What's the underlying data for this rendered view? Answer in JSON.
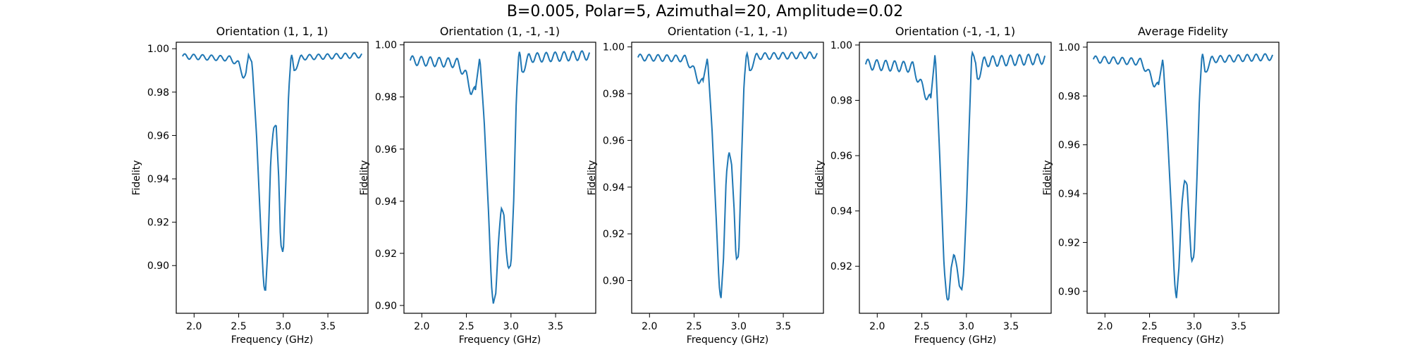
{
  "suptitle": "B=0.005, Polar=5, Azimuthal=20, Amplitude=0.02",
  "colors": {
    "line": "#1f77b4"
  },
  "chart_data": [
    {
      "type": "line",
      "title": "Orientation (1, 1, 1)",
      "xlabel": "Frequency (GHz)",
      "ylabel": "Fidelity",
      "xlim": [
        1.8,
        3.95
      ],
      "ylim": [
        0.878,
        1.003
      ],
      "xticks": [
        "2.0",
        "2.5",
        "3.0",
        "3.5"
      ],
      "yticks": [
        "0.90",
        "0.92",
        "0.94",
        "0.96",
        "0.98",
        "1.00"
      ],
      "x": [
        1.87,
        2.4,
        2.5,
        2.55,
        2.58,
        2.61,
        2.65,
        2.7,
        2.75,
        2.78,
        2.8,
        2.83,
        2.86,
        2.89,
        2.92,
        2.95,
        2.97,
        3.0,
        3.03,
        3.06,
        3.09,
        3.12,
        3.2,
        3.88
      ],
      "y": [
        0.9965,
        0.9955,
        0.993,
        0.9875,
        0.9875,
        0.997,
        0.994,
        0.96,
        0.915,
        0.891,
        0.887,
        0.91,
        0.95,
        0.963,
        0.965,
        0.94,
        0.91,
        0.905,
        0.94,
        0.98,
        0.998,
        0.99,
        0.996,
        0.997
      ],
      "ripple": 0.0012
    },
    {
      "type": "line",
      "title": "Orientation (1, -1, -1)",
      "xlabel": "Frequency (GHz)",
      "ylabel": "Fidelity",
      "xlim": [
        1.8,
        3.95
      ],
      "ylim": [
        0.897,
        1.001
      ],
      "xticks": [
        "2.0",
        "2.5",
        "3.0",
        "3.5"
      ],
      "yticks": [
        "0.90",
        "0.92",
        "0.94",
        "0.96",
        "0.98",
        "1.00"
      ],
      "x": [
        1.87,
        2.4,
        2.5,
        2.55,
        2.6,
        2.65,
        2.7,
        2.75,
        2.78,
        2.8,
        2.83,
        2.86,
        2.89,
        2.92,
        2.95,
        2.97,
        3.0,
        3.03,
        3.06,
        3.09,
        3.12,
        3.2,
        3.88
      ],
      "y": [
        0.994,
        0.993,
        0.988,
        0.9825,
        0.982,
        0.996,
        0.97,
        0.935,
        0.908,
        0.9,
        0.905,
        0.925,
        0.937,
        0.935,
        0.92,
        0.914,
        0.915,
        0.94,
        0.98,
        0.998,
        0.99,
        0.995,
        0.996
      ],
      "ripple": 0.0018
    },
    {
      "type": "line",
      "title": "Orientation (-1, 1, -1)",
      "xlabel": "Frequency (GHz)",
      "ylabel": "Fidelity",
      "xlim": [
        1.8,
        3.95
      ],
      "ylim": [
        0.886,
        1.002
      ],
      "xticks": [
        "2.0",
        "2.5",
        "3.0",
        "3.5"
      ],
      "yticks": [
        "0.90",
        "0.92",
        "0.94",
        "0.96",
        "0.98",
        "1.00"
      ],
      "x": [
        1.87,
        2.4,
        2.5,
        2.55,
        2.6,
        2.65,
        2.7,
        2.75,
        2.78,
        2.8,
        2.83,
        2.86,
        2.89,
        2.92,
        2.95,
        2.97,
        3.0,
        3.03,
        3.06,
        3.09,
        3.12,
        3.2,
        3.88
      ],
      "y": [
        0.9955,
        0.995,
        0.99,
        0.9855,
        0.985,
        0.996,
        0.965,
        0.925,
        0.898,
        0.891,
        0.91,
        0.945,
        0.955,
        0.95,
        0.93,
        0.909,
        0.91,
        0.95,
        0.985,
        0.998,
        0.99,
        0.996,
        0.9965
      ],
      "ripple": 0.0014
    },
    {
      "type": "line",
      "title": "Orientation (-1, -1, 1)",
      "xlabel": "Frequency (GHz)",
      "ylabel": "Fidelity",
      "xlim": [
        1.8,
        3.95
      ],
      "ylim": [
        0.903,
        1.001
      ],
      "xticks": [
        "2.0",
        "2.5",
        "3.0",
        "3.5"
      ],
      "yticks": [
        "0.92",
        "0.94",
        "0.96",
        "0.98",
        "1.00"
      ],
      "x": [
        1.87,
        2.4,
        2.5,
        2.55,
        2.6,
        2.65,
        2.7,
        2.75,
        2.78,
        2.8,
        2.83,
        2.86,
        2.89,
        2.92,
        2.95,
        2.97,
        3.0,
        3.03,
        3.06,
        3.09,
        3.12,
        3.2,
        3.88
      ],
      "y": [
        0.993,
        0.992,
        0.985,
        0.982,
        0.98,
        0.998,
        0.96,
        0.92,
        0.908,
        0.907,
        0.92,
        0.925,
        0.92,
        0.913,
        0.912,
        0.918,
        0.94,
        0.97,
        0.998,
        0.995,
        0.988,
        0.994,
        0.995
      ],
      "ripple": 0.0019
    },
    {
      "type": "line",
      "title": "Average Fidelity",
      "xlabel": "Frequency (GHz)",
      "ylabel": "Fidelity",
      "xlim": [
        1.8,
        3.95
      ],
      "ylim": [
        0.891,
        1.002
      ],
      "xticks": [
        "2.0",
        "2.5",
        "3.0",
        "3.5"
      ],
      "yticks": [
        "0.90",
        "0.92",
        "0.94",
        "0.96",
        "0.98",
        "1.00"
      ],
      "x": [
        1.87,
        2.4,
        2.5,
        2.55,
        2.6,
        2.65,
        2.7,
        2.75,
        2.78,
        2.8,
        2.83,
        2.86,
        2.89,
        2.92,
        2.95,
        2.97,
        3.0,
        3.03,
        3.06,
        3.09,
        3.12,
        3.2,
        3.88
      ],
      "y": [
        0.995,
        0.994,
        0.989,
        0.985,
        0.984,
        0.996,
        0.965,
        0.93,
        0.904,
        0.896,
        0.91,
        0.935,
        0.945,
        0.944,
        0.925,
        0.912,
        0.914,
        0.945,
        0.98,
        0.998,
        0.99,
        0.995,
        0.996
      ],
      "ripple": 0.0014
    }
  ]
}
